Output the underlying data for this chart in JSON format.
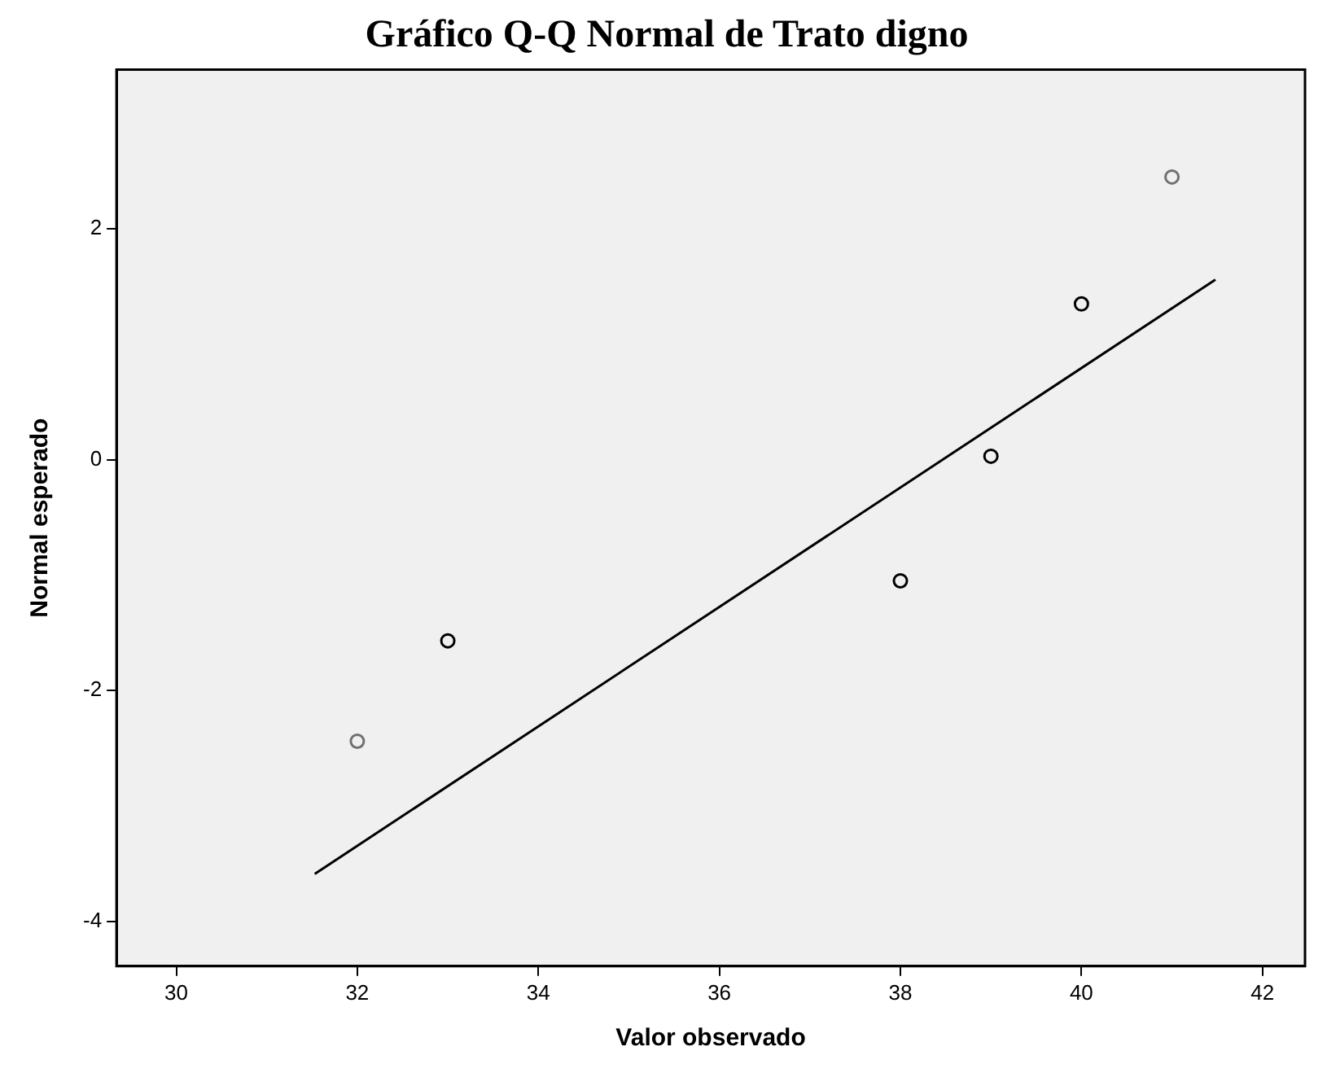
{
  "chart_data": {
    "type": "scatter",
    "title": "Gráfico Q-Q Normal de Trato digno",
    "xlabel": "Valor observado",
    "ylabel": "Normal esperado",
    "series": [
      {
        "x": [
          32,
          33,
          38,
          39,
          40,
          41
        ],
        "values": [
          -2.44,
          -1.57,
          -1.05,
          0.03,
          1.35,
          2.45
        ],
        "colors": [
          "#707070",
          "#000000",
          "#000000",
          "#000000",
          "#000000",
          "#707070"
        ],
        "marker": "circle"
      },
      {
        "type": "line",
        "x": [
          31.53,
          41.48
        ],
        "values": [
          -3.59,
          1.56
        ],
        "color": "#000000",
        "marker": "none",
        "line_style": "solid"
      }
    ],
    "xlim": [
      29.34,
      42.47
    ],
    "ylim": [
      -4.39,
      3.38
    ],
    "xticks": [
      30,
      32,
      34,
      36,
      38,
      40,
      42
    ],
    "yticks": [
      -4,
      -2,
      0,
      2
    ],
    "grid": false,
    "legend": false
  }
}
